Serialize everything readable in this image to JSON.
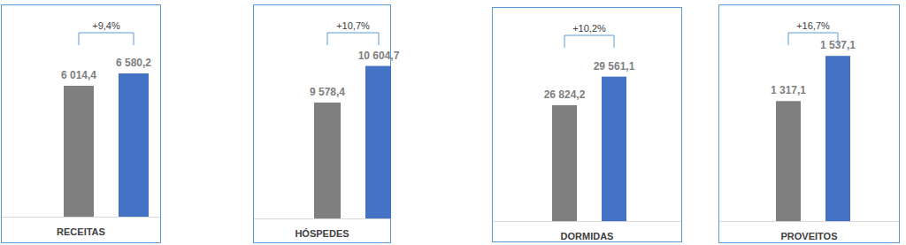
{
  "chart_data": [
    {
      "type": "bar",
      "title": "RECEITAS",
      "annotation": "+9,4%",
      "categories": [
        null,
        null
      ],
      "values": [
        6014.4,
        6580.2
      ],
      "value_labels": [
        "6 014,4",
        "6 580,2"
      ],
      "colors": [
        "#7f7f7f",
        "#4472c4"
      ],
      "ylim": [
        0,
        9750
      ],
      "data_labels": true,
      "tick_labels": false,
      "grid": false
    },
    {
      "type": "bar",
      "title": "HÓSPEDES",
      "annotation": "+10,7%",
      "categories": [
        null,
        null
      ],
      "values": [
        9578.4,
        10604.7
      ],
      "value_labels": [
        "9 578,4",
        "10 604,7"
      ],
      "colors": [
        "#7f7f7f",
        "#4472c4"
      ],
      "ylim": [
        6324,
        12332
      ],
      "data_labels": true,
      "tick_labels": false,
      "grid": false
    },
    {
      "type": "bar",
      "title": "DORMIDAS",
      "annotation": "+10,2%",
      "categories": [
        null,
        null
      ],
      "values": [
        26824.2,
        29561.1
      ],
      "value_labels": [
        "26 824,2",
        "29 561,1"
      ],
      "colors": [
        "#7f7f7f",
        "#4472c4"
      ],
      "ylim": [
        15709,
        36229
      ],
      "data_labels": true,
      "tick_labels": false,
      "grid": false
    },
    {
      "type": "bar",
      "title": "PROVEITOS",
      "annotation": "+16,7%",
      "categories": [
        null,
        null
      ],
      "values": [
        1317.1,
        1537.1
      ],
      "value_labels": [
        "1 317,1",
        "1 537,1"
      ],
      "colors": [
        "#7f7f7f",
        "#4472c4"
      ],
      "ylim": [
        732,
        1788
      ],
      "data_labels": true,
      "tick_labels": false,
      "grid": false
    }
  ]
}
